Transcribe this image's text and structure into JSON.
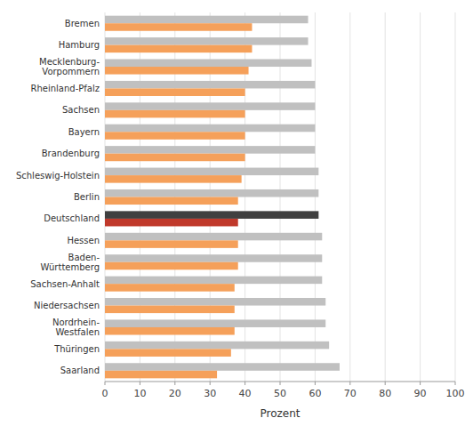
{
  "chart_data": {
    "type": "bar",
    "orientation": "horizontal",
    "categories": [
      "Saarland",
      "Thüringen",
      "Nordrhein-\nWestfalen",
      "Niedersachsen",
      "Sachsen-Anhalt",
      "Baden-\nWürttemberg",
      "Hessen",
      "Deutschland",
      "Berlin",
      "Schleswig-Holstein",
      "Brandenburg",
      "Bayern",
      "Sachsen",
      "Rheinland-Pfalz",
      "Mecklenburg-\nVorpommern",
      "Hamburg",
      "Bremen"
    ],
    "series": [
      {
        "values": [
          67,
          64,
          63,
          63,
          62,
          62,
          62,
          61,
          61,
          61,
          60,
          60,
          60,
          60,
          59,
          58,
          58
        ],
        "colors": [
          "#c0c0c0",
          "#c0c0c0",
          "#c0c0c0",
          "#c0c0c0",
          "#c0c0c0",
          "#c0c0c0",
          "#c0c0c0",
          "#404040",
          "#c0c0c0",
          "#c0c0c0",
          "#c0c0c0",
          "#c0c0c0",
          "#c0c0c0",
          "#c0c0c0",
          "#c0c0c0",
          "#c0c0c0",
          "#c0c0c0"
        ]
      },
      {
        "values": [
          32,
          36,
          37,
          37,
          37,
          38,
          38,
          38,
          38,
          39,
          40,
          40,
          40,
          40,
          41,
          42,
          42
        ],
        "colors": [
          "#f5a05a",
          "#f5a05a",
          "#f5a05a",
          "#f5a05a",
          "#f5a05a",
          "#f5a05a",
          "#f5a05a",
          "#c0392b",
          "#f5a05a",
          "#f5a05a",
          "#f5a05a",
          "#f5a05a",
          "#f5a05a",
          "#f5a05a",
          "#f5a05a",
          "#f5a05a",
          "#f5a05a"
        ]
      }
    ],
    "xlabel": "Prozent",
    "xlim": [
      0,
      100
    ],
    "xticks": [
      0,
      10,
      20,
      30,
      40,
      50,
      60,
      70,
      80,
      90,
      100
    ],
    "grid": true
  }
}
